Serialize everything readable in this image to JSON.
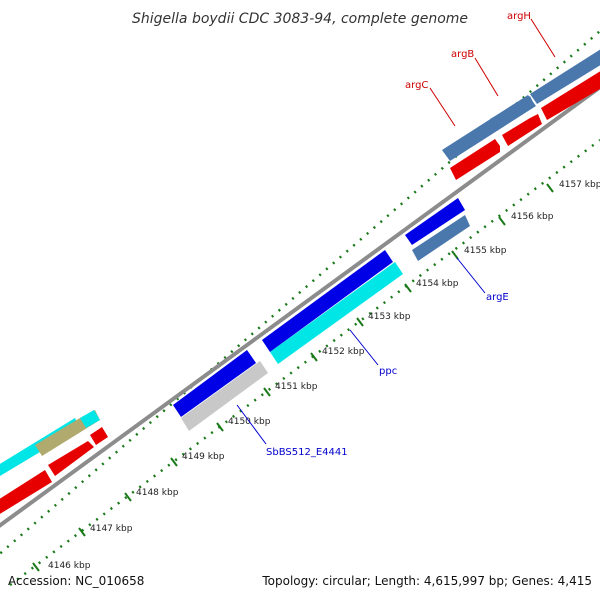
{
  "title": "Shigella boydii CDC 3083-94, complete genome",
  "accession_label": "Accession: NC_010658",
  "summary_label": "Topology: circular; Length: 4,615,997 bp; Genes: 4,415",
  "colors": {
    "blue": "#0000e6",
    "steel": "#4a78ad",
    "red": "#e60000",
    "cyan": "#00e6e6",
    "gray": "#c8c8c8",
    "olive": "#b0aa6e",
    "backbone": "#8c8c8c",
    "dots": "#1a7a1a",
    "label_red": "#cc0000",
    "label_blue": "#0000cc"
  },
  "ticks": [
    {
      "label": "4146 kbp"
    },
    {
      "label": "4147 kbp"
    },
    {
      "label": "4148 kbp"
    },
    {
      "label": "4149 kbp"
    },
    {
      "label": "4150 kbp"
    },
    {
      "label": "4151 kbp"
    },
    {
      "label": "4152 kbp"
    },
    {
      "label": "4153 kbp"
    },
    {
      "label": "4154 kbp"
    },
    {
      "label": "4155 kbp"
    },
    {
      "label": "4156 kbp"
    },
    {
      "label": "4157 kbp"
    }
  ],
  "gene_labels": [
    {
      "text": "argH",
      "color": "label_red"
    },
    {
      "text": "argB",
      "color": "label_red"
    },
    {
      "text": "argC",
      "color": "label_red"
    },
    {
      "text": "argE",
      "color": "label_blue"
    },
    {
      "text": "ppc",
      "color": "label_blue"
    },
    {
      "text": "SbBS512_E4441",
      "color": "label_blue"
    }
  ]
}
